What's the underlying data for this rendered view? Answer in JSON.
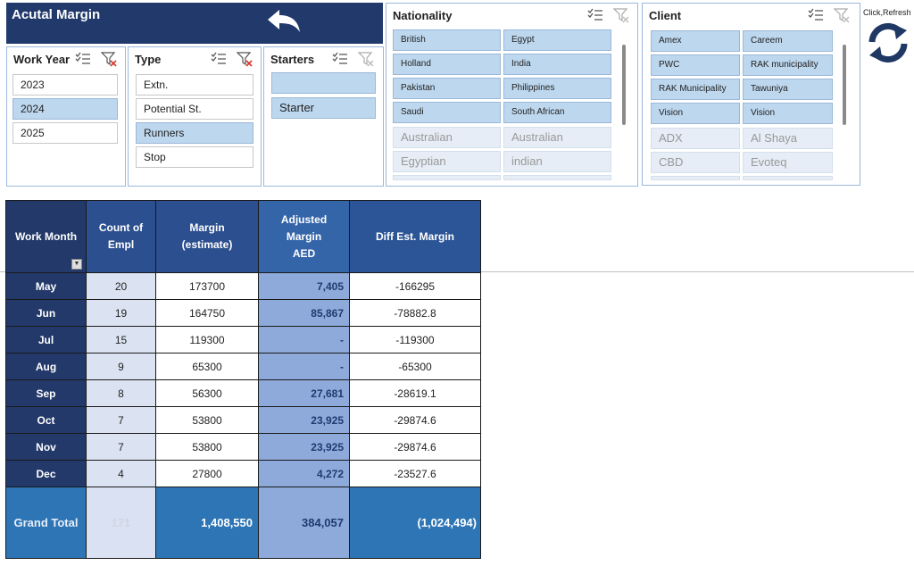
{
  "title": "Acutal Margin",
  "icons": {
    "back": "undo-arrow-icon",
    "multi_select": "multi-select-icon",
    "clear_filter": "clear-filter-icon",
    "refresh": "refresh-icon"
  },
  "colors": {
    "navy": "#223a6b",
    "selected": "#bdd7ee",
    "adjusted": "#8eaadb",
    "total": "#2e75b6"
  },
  "slicers": {
    "work_year": {
      "header": "Work Year",
      "items": [
        "2023",
        "2024",
        "2025"
      ],
      "selected": [
        "2024"
      ]
    },
    "type": {
      "header": "Type",
      "items": [
        "Extn.",
        "Potential St.",
        "Runners",
        "Stop"
      ],
      "selected": [
        "Runners"
      ]
    },
    "starters": {
      "header": "Starters",
      "items": [
        "",
        "Starter"
      ],
      "selected": [
        "",
        "Starter"
      ]
    },
    "nationality": {
      "header": "Nationality",
      "items": [
        "British",
        "Egypt",
        "Holland",
        "India",
        "Pakistan",
        "Philippines",
        "Saudi",
        "South African",
        "Australian",
        "Australian",
        "Egyptian",
        "indian"
      ]
    },
    "client": {
      "header": "Client",
      "items": [
        "Amex",
        "Careem",
        "PWC",
        "RAK municipality",
        "RAK Municipality",
        "Tawuniya",
        "Vision",
        "Vision",
        "ADX",
        "Al Shaya",
        "CBD",
        "Evoteq"
      ]
    }
  },
  "refresh_note": "Click,Refresh",
  "table": {
    "headers": [
      "Work Month",
      "Count of Empl",
      "Margin (estimate)",
      "Adjusted Margin AED",
      "Diff Est. Margin"
    ],
    "rows": [
      [
        "May",
        "20",
        "173700",
        "7,405",
        "-166295"
      ],
      [
        "Jun",
        "19",
        "164750",
        "85,867",
        "-78882.8"
      ],
      [
        "Jul",
        "15",
        "119300",
        "-",
        "-119300"
      ],
      [
        "Aug",
        "9",
        "65300",
        "-",
        "-65300"
      ],
      [
        "Sep",
        "8",
        "56300",
        "27,681",
        "-28619.1"
      ],
      [
        "Oct",
        "7",
        "53800",
        "23,925",
        "-29874.6"
      ],
      [
        "Nov",
        "7",
        "53800",
        "23,925",
        "-29874.6"
      ],
      [
        "Dec",
        "4",
        "27800",
        "4,272",
        "-23527.6"
      ]
    ],
    "total": [
      "Grand Total",
      "171",
      "1,408,550",
      "384,057",
      "(1,024,494)"
    ]
  }
}
